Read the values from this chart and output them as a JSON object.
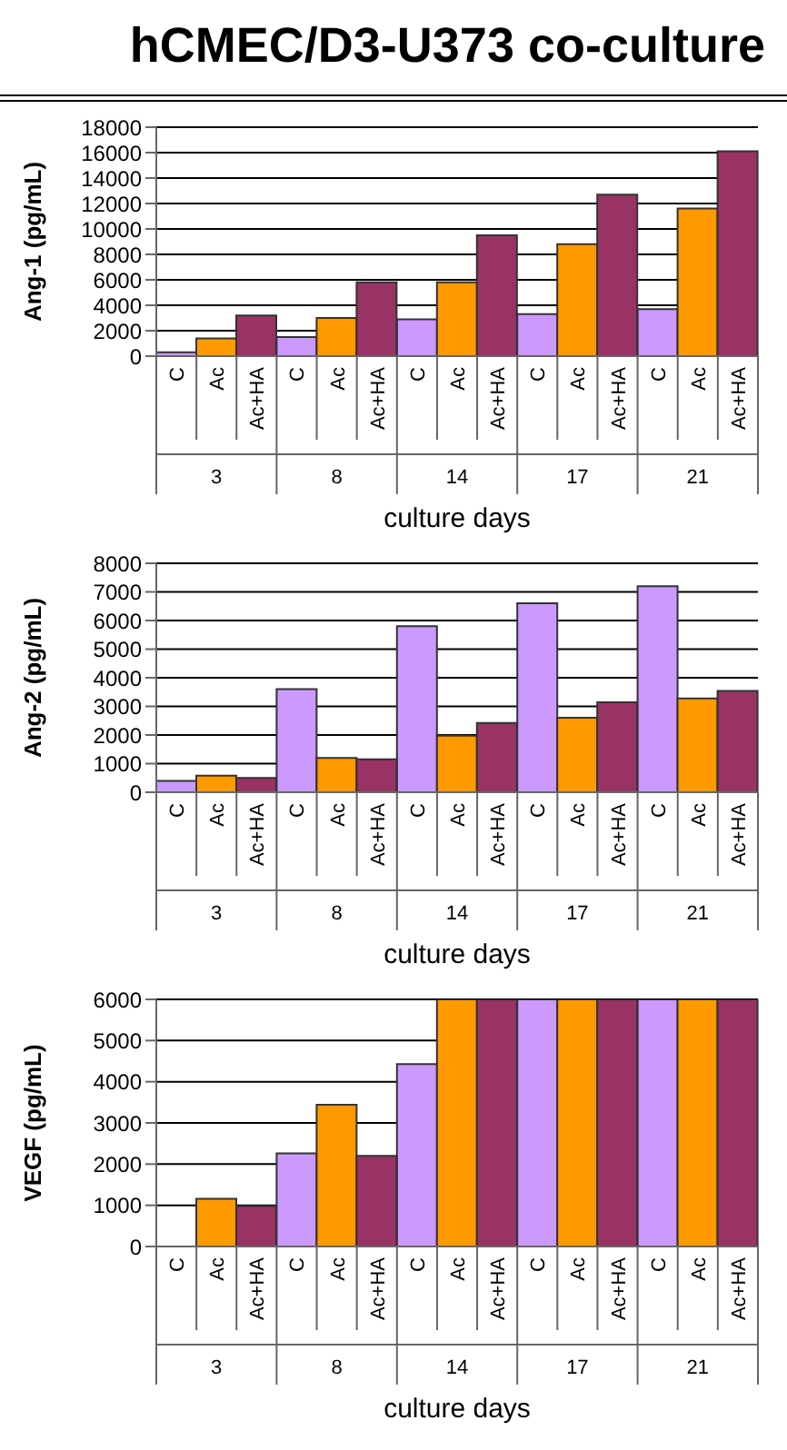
{
  "chart_data": [
    {
      "type": "bar",
      "title": "hCMEC/D3-U373 co-culture",
      "ylabel": "Ang-1 (pg/mL)",
      "xlabel": "culture days",
      "categories": [
        "3",
        "8",
        "14",
        "17",
        "21"
      ],
      "series": [
        {
          "name": "C",
          "color": "#cc99ff",
          "values": [
            300,
            1500,
            2900,
            3300,
            3700
          ]
        },
        {
          "name": "Ac",
          "color": "#ff9900",
          "values": [
            1400,
            3000,
            5800,
            8800,
            11600
          ]
        },
        {
          "name": "Ac+HA",
          "color": "#993366",
          "values": [
            3200,
            5800,
            9500,
            12700,
            16100
          ]
        }
      ],
      "ylim": [
        0,
        18000
      ],
      "yticks": [
        0,
        2000,
        4000,
        6000,
        8000,
        10000,
        12000,
        14000,
        16000,
        18000
      ],
      "grid": "y",
      "legend": false
    },
    {
      "type": "bar",
      "ylabel": "Ang-2 (pg/mL)",
      "xlabel": "culture days",
      "categories": [
        "3",
        "8",
        "14",
        "17",
        "21"
      ],
      "series": [
        {
          "name": "C",
          "color": "#cc99ff",
          "values": [
            400,
            3600,
            5800,
            6600,
            7200
          ]
        },
        {
          "name": "Ac",
          "color": "#ff9900",
          "values": [
            580,
            1200,
            1980,
            2600,
            3280
          ]
        },
        {
          "name": "Ac+HA",
          "color": "#993366",
          "values": [
            500,
            1150,
            2420,
            3140,
            3540
          ]
        }
      ],
      "ylim": [
        0,
        8000
      ],
      "yticks": [
        0,
        1000,
        2000,
        3000,
        4000,
        5000,
        6000,
        7000,
        8000
      ],
      "grid": "y",
      "legend": false
    },
    {
      "type": "bar",
      "ylabel": "VEGF (pg/mL)",
      "xlabel": "culture days",
      "categories": [
        "3",
        "8",
        "14",
        "17",
        "21"
      ],
      "series": [
        {
          "name": "C",
          "color": "#cc99ff",
          "values": [
            null,
            2260,
            4430,
            6000,
            6000
          ]
        },
        {
          "name": "Ac",
          "color": "#ff9900",
          "values": [
            1160,
            3440,
            6000,
            6000,
            6000
          ]
        },
        {
          "name": "Ac+HA",
          "color": "#993366",
          "values": [
            980,
            2200,
            6000,
            6000,
            6000
          ]
        }
      ],
      "ylim": [
        0,
        6000
      ],
      "yticks": [
        0,
        1000,
        2000,
        3000,
        4000,
        5000,
        6000
      ],
      "grid": "y",
      "legend": false
    }
  ]
}
